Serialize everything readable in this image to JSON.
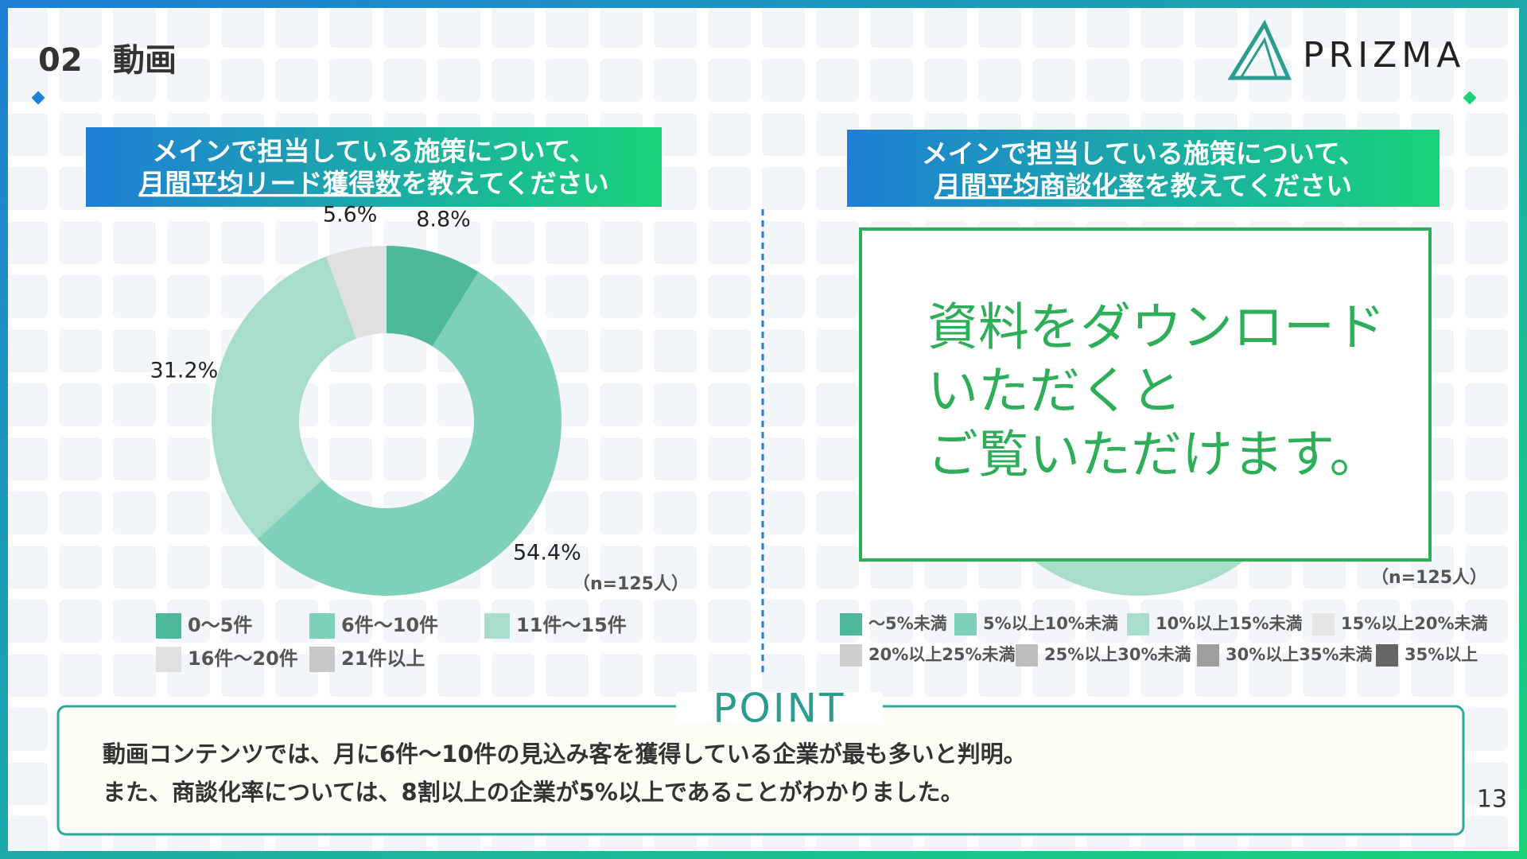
{
  "header": {
    "number": "02",
    "title": "動画",
    "logo": "PRIZMA"
  },
  "chart_data": [
    {
      "type": "donut",
      "title_lines": [
        "メインで担当している施策について、",
        "月間平均リード獲得数",
        "を教えてください"
      ],
      "categories": [
        "0〜5件",
        "6件〜10件",
        "11件〜15件",
        "16件〜20件",
        "21件以上"
      ],
      "values": [
        8.8,
        54.4,
        31.2,
        5.6,
        0
      ],
      "value_labels": [
        "8.8%",
        "54.4%",
        "31.2%",
        "5.6%",
        null
      ],
      "colors": [
        "#4db89a",
        "#7fd0b8",
        "#a8dccb",
        "#e0e0e0",
        "#c8c8c8"
      ],
      "note": "（n=125人）"
    },
    {
      "type": "donut",
      "title_lines": [
        "メインで担当している施策について、",
        "月間平均商談化率",
        "を教えてください"
      ],
      "categories": [
        "〜5%未満",
        "5%以上10%未満",
        "10%以上15%未満",
        "15%以上20%未満",
        "20%以上25%未満",
        "25%以上30%未満",
        "30%以上35%未満",
        "35%以上"
      ],
      "colors": [
        "#4db89a",
        "#7fd0b8",
        "#a8dccb",
        "#e6e6e6",
        "#cfcfcf",
        "#bdbdbd",
        "#9e9e9e",
        "#666666"
      ],
      "note": "（n=125人）"
    }
  ],
  "overlay": [
    "資料をダウンロード",
    "いただくと",
    "ご覧いただけます。"
  ],
  "point": {
    "heading": "POINT",
    "lines": [
      "動画コンテンツでは、月に6件〜10件の見込み客を獲得している企業が最も多いと判明。",
      "また、商談化率については、8割以上の企業が5%以上であることがわかりました。"
    ]
  },
  "page_number": "13"
}
